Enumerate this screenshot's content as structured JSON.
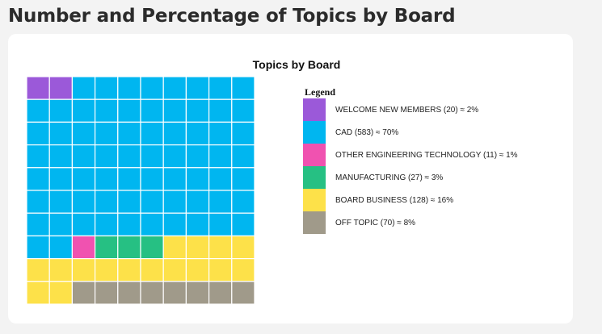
{
  "page": {
    "heading": "Number and Percentage of Topics by Board"
  },
  "chart_data": {
    "type": "waffle",
    "title": "Topics by Board",
    "legend_title": "Legend",
    "legend_placement": "right",
    "grid_rows": 10,
    "grid_cols": 10,
    "fill_order": "row-major from top-left",
    "series": [
      {
        "name": "WELCOME NEW MEMBERS",
        "count": 20,
        "percent": 2,
        "squares": 2,
        "color": "#9b59d9",
        "label": "WELCOME NEW MEMBERS (20) ≈ 2%"
      },
      {
        "name": "CAD",
        "count": 583,
        "percent": 70,
        "squares": 70,
        "color": "#00b6f0",
        "label": "CAD (583) ≈ 70%"
      },
      {
        "name": "OTHER ENGINEERING TECHNOLOGY",
        "count": 11,
        "percent": 1,
        "squares": 1,
        "color": "#f052b0",
        "label": "OTHER ENGINEERING TECHNOLOGY (11) ≈ 1%"
      },
      {
        "name": "MANUFACTURING",
        "count": 27,
        "percent": 3,
        "squares": 3,
        "color": "#26c083",
        "label": "MANUFACTURING (27) ≈ 3%"
      },
      {
        "name": "BOARD BUSINESS",
        "count": 128,
        "percent": 16,
        "squares": 16,
        "color": "#fde149",
        "label": "BOARD BUSINESS (128) ≈ 16%"
      },
      {
        "name": "OFF TOPIC",
        "count": 70,
        "percent": 8,
        "squares": 8,
        "color": "#a09a8a",
        "label": "OFF TOPIC (70) ≈ 8%"
      }
    ]
  }
}
